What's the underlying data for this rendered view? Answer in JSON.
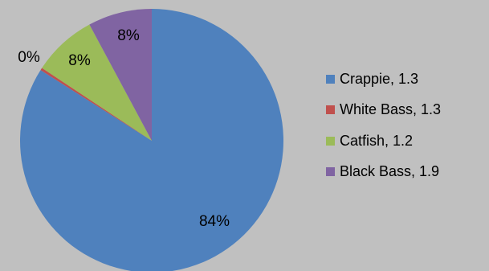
{
  "chart_data": {
    "type": "pie",
    "title": "",
    "slices": [
      {
        "name": "Crappie",
        "value": 84,
        "label": "84%",
        "legend": "Crappie, 1.3",
        "color": "#4f81bd"
      },
      {
        "name": "White Bass",
        "value": 0.3,
        "label": "0%",
        "legend": "White Bass, 1.3",
        "color": "#c0504d"
      },
      {
        "name": "Catfish",
        "value": 7.85,
        "label": "8%",
        "legend": "Catfish, 1.2",
        "color": "#9bbb59"
      },
      {
        "name": "Black Bass",
        "value": 7.85,
        "label": "8%",
        "legend": "Black Bass, 1.9",
        "color": "#8064a2"
      }
    ],
    "legend_position": "right",
    "start_angle": "top",
    "direction": "clockwise"
  }
}
